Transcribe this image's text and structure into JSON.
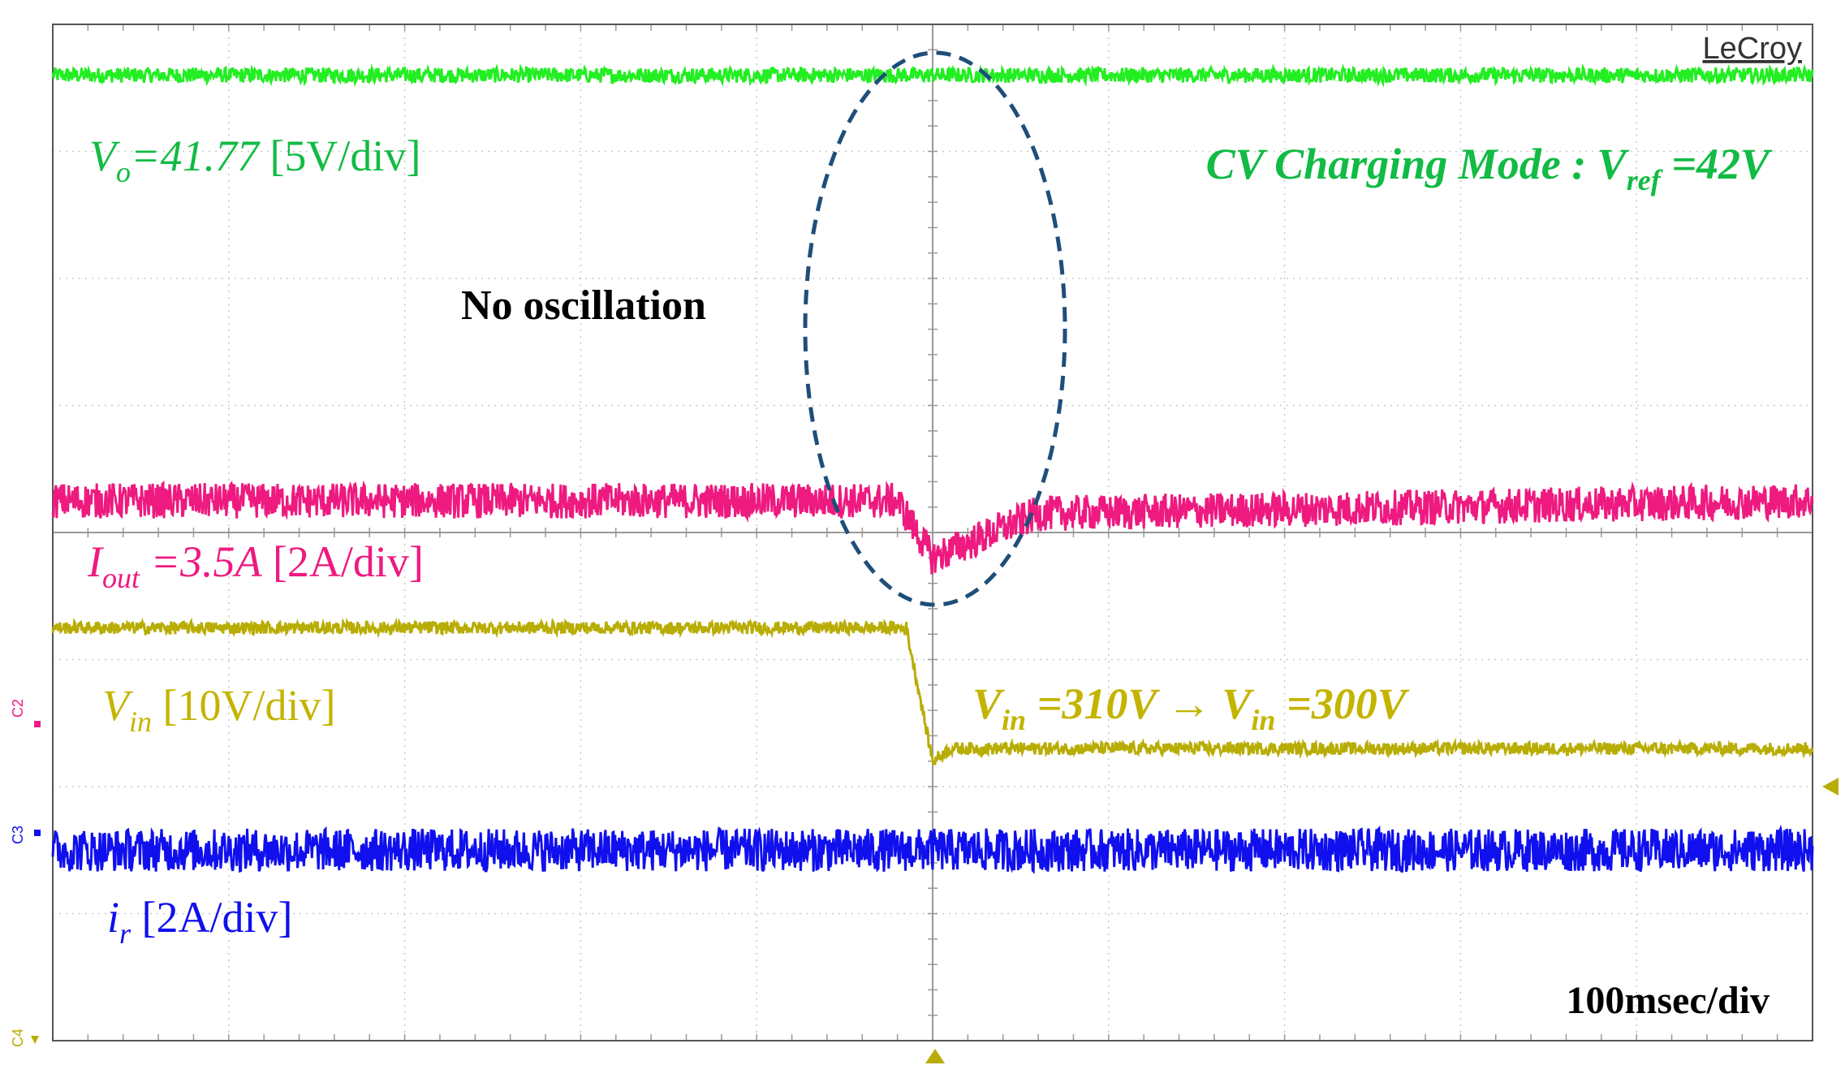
{
  "brand": "LeCroy",
  "timebase_label": "100msec/div",
  "annotation_text": "No oscillation",
  "channel_markers": [
    "C2",
    "C3",
    "C4"
  ],
  "colors": {
    "vo": "#22ee22",
    "vo_text": "#11bb44",
    "iout": "#ee1a80",
    "vin": "#b8ad05",
    "vin_text": "#c4b400",
    "ir": "#1010ee",
    "grid": "#c8c8c8",
    "ellipse": "#1f4e7a"
  },
  "chart_data": {
    "type": "line",
    "title": "",
    "x_unit": "div",
    "xlim": [
      0,
      10
    ],
    "y_unit": "div",
    "ylim": [
      0,
      8
    ],
    "grid": true,
    "timebase": "100msec/div",
    "event_x": 5.0,
    "series": [
      {
        "name": "Vo",
        "scale": "5V/div",
        "value_text": "=41.77",
        "color": "#22ee22",
        "level": [
          [
            0,
            7.6
          ],
          [
            10,
            7.6
          ]
        ],
        "noise": 0.06
      },
      {
        "name": "Iout",
        "scale": "2A/div",
        "value_text": "=3.5A",
        "color": "#ee1a80",
        "level": [
          [
            0,
            4.25
          ],
          [
            4.8,
            4.25
          ],
          [
            5.0,
            3.8
          ],
          [
            5.6,
            4.15
          ],
          [
            10,
            4.25
          ]
        ],
        "noise": 0.14
      },
      {
        "name": "Vin",
        "scale": "10V/div",
        "transition_text": "=310V → V =300V",
        "color": "#b8ad05",
        "level": [
          [
            0,
            3.25
          ],
          [
            4.85,
            3.25
          ],
          [
            5.0,
            2.2
          ],
          [
            5.1,
            2.3
          ],
          [
            10,
            2.3
          ]
        ],
        "noise": 0.05
      },
      {
        "name": "ir",
        "scale": "2A/div",
        "color": "#1010ee",
        "level": [
          [
            0,
            1.5
          ],
          [
            10,
            1.5
          ]
        ],
        "noise": 0.17
      }
    ]
  },
  "labels": {
    "vo": {
      "sym": "V",
      "sub": "o",
      "eq": "=41.77",
      "scale": " [5V/div]"
    },
    "iout": {
      "sym": "I",
      "sub": "out",
      "eq": " =3.5A",
      "scale": " [2A/div]"
    },
    "vin": {
      "sym": "V",
      "sub": "in",
      "scale": " [10V/div]"
    },
    "ir": {
      "sym": "i",
      "sub": "r",
      "scale": " [2A/div]"
    },
    "mode": {
      "prefix": "CV Charging Mode : V",
      "sub": "ref",
      "eq": " =42V"
    },
    "transition": {
      "v1": "V",
      "s1": "in",
      "eq1": " =310V → ",
      "v2": "V",
      "s2": "in",
      "eq2": " =300V"
    }
  }
}
